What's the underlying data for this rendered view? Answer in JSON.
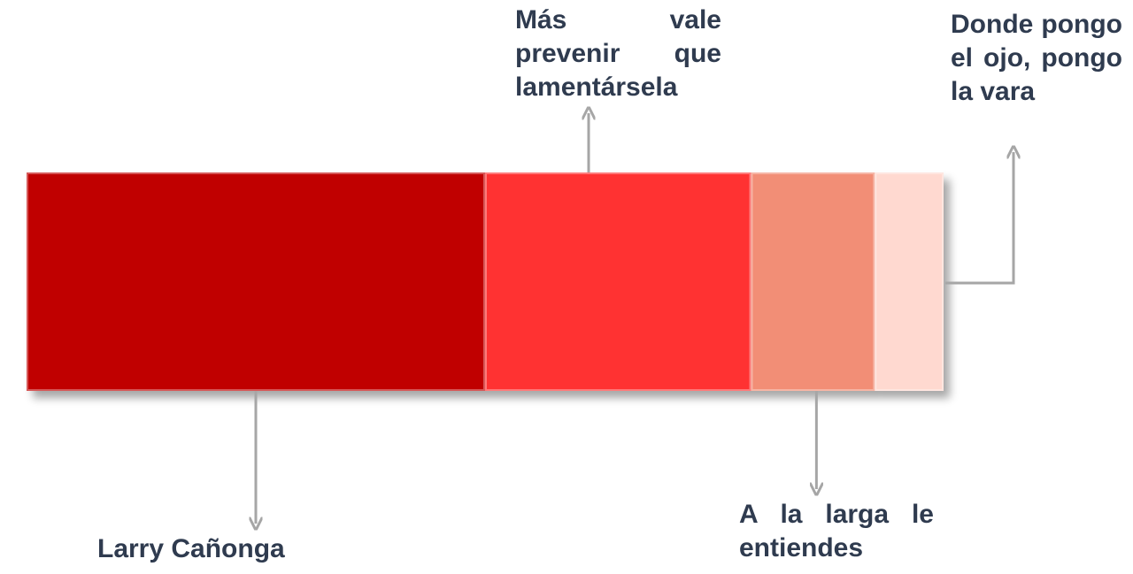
{
  "chart_data": {
    "type": "bar",
    "orientation": "horizontal-stacked",
    "grid": false,
    "legend": "none",
    "title": "",
    "xlabel": "",
    "ylabel": "",
    "series": [
      {
        "label": "Larry Cañonga",
        "value": 50,
        "color": "#c00000"
      },
      {
        "label": "Más vale prevenir que lamentársela",
        "value": 29,
        "color": "#ff3333"
      },
      {
        "label": "A la larga le entiendes",
        "value": 13.5,
        "color": "#f28e76"
      },
      {
        "label": "Donde pongo el ojo, pongo la vara",
        "value": 7.5,
        "color": "#ffd9d0"
      }
    ],
    "total": 100
  },
  "connector_color": "#a6a6a6"
}
